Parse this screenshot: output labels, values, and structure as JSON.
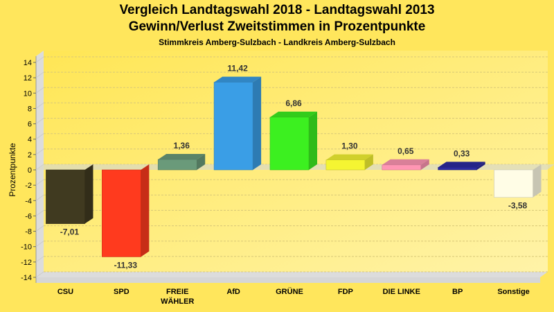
{
  "chart_data": {
    "type": "bar",
    "title": "Vergleich Landtagswahl 2018 - Landtagswahl 2013",
    "subtitle_line2": "Gewinn/Verlust Zweitstimmen in Prozentpunkte",
    "subtitle": "Stimmkreis Amberg-Sulzbach - Landkreis Amberg-Sulzbach",
    "xlabel": "",
    "ylabel": "Prozentpunkte",
    "ylim": [
      -14,
      14
    ],
    "yticks": [
      "14",
      "12",
      "10",
      "8",
      "6",
      "4",
      "2",
      "0",
      "-2",
      "-4",
      "-6",
      "-8",
      "-10",
      "-12",
      "-14"
    ],
    "grid": true,
    "categories": [
      "CSU",
      "SPD",
      "FREIE WÄHLER",
      "AfD",
      "GRÜNE",
      "FDP",
      "DIE LINKE",
      "BP",
      "Sonstige"
    ],
    "category_lines": [
      [
        "CSU"
      ],
      [
        "SPD"
      ],
      [
        "FREIE",
        "WÄHLER"
      ],
      [
        "AfD"
      ],
      [
        "GRÜNE"
      ],
      [
        "FDP"
      ],
      [
        "DIE LINKE"
      ],
      [
        "BP"
      ],
      [
        "Sonstige"
      ]
    ],
    "values": [
      -7.01,
      -11.33,
      1.36,
      11.42,
      6.86,
      1.3,
      0.65,
      0.33,
      -3.58
    ],
    "labels": [
      "-7,01",
      "-11,33",
      "1,36",
      "11,42",
      "6,86",
      "1,30",
      "0,65",
      "0,33",
      "-3,58"
    ],
    "colors": [
      "#403a20",
      "#ff3a1e",
      "#6a9a7a",
      "#3a9ee6",
      "#3cf020",
      "#f5f532",
      "#ff96b4",
      "#2a2aa0",
      "#fffde6"
    ]
  }
}
